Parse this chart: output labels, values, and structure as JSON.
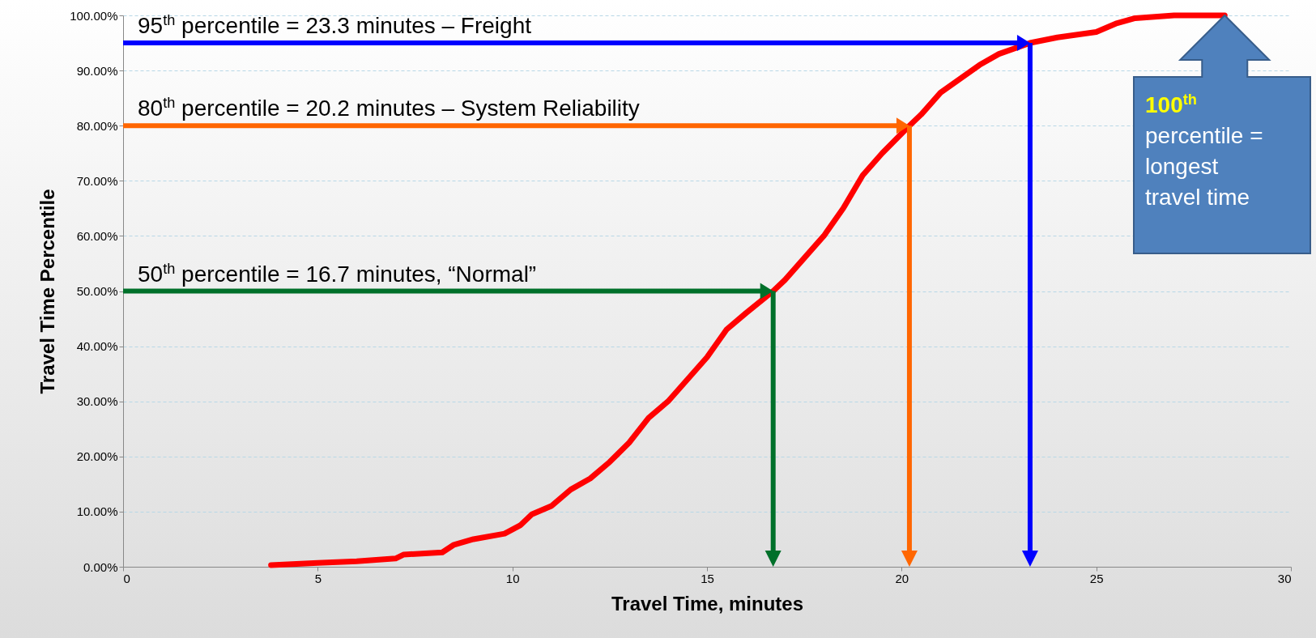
{
  "chart_data": {
    "type": "line",
    "xlabel": "Travel Time, minutes",
    "ylabel": "Travel Time Percentile",
    "x": [
      3.8,
      5,
      6,
      7,
      7.2,
      8.2,
      8.5,
      9,
      9.8,
      10.2,
      10.5,
      11,
      11.5,
      12,
      12.5,
      13,
      13.5,
      14,
      14.5,
      15,
      15.5,
      16,
      16.7,
      17,
      17.5,
      18,
      18.5,
      19,
      19.5,
      20.2,
      20.5,
      21,
      21.5,
      22,
      22.5,
      23.3,
      24,
      25,
      25.5,
      26,
      27,
      28.3
    ],
    "series": [
      {
        "color": "#ff0000",
        "values": [
          0.3,
          0.7,
          1,
          1.5,
          2.2,
          2.6,
          4,
          5,
          6,
          7.5,
          9.5,
          11,
          14,
          16,
          19,
          22.5,
          27,
          30,
          34,
          38,
          43,
          46,
          50,
          52,
          56,
          60,
          65,
          71,
          75,
          80,
          82,
          86,
          88.5,
          91,
          93,
          95,
          96,
          97,
          98.5,
          99.5,
          100,
          100
        ]
      }
    ],
    "xlim": [
      0,
      30
    ],
    "xticks": [
      0,
      5,
      10,
      15,
      20,
      25,
      30
    ],
    "ylim": [
      0,
      100
    ],
    "yticks": [
      {
        "value": 0,
        "label": "0.00%"
      },
      {
        "value": 10,
        "label": "10.00%"
      },
      {
        "value": 20,
        "label": "20.00%"
      },
      {
        "value": 30,
        "label": "30.00%"
      },
      {
        "value": 40,
        "label": "40.00%"
      },
      {
        "value": 50,
        "label": "50.00%"
      },
      {
        "value": 60,
        "label": "60.00%"
      },
      {
        "value": 70,
        "label": "70.00%"
      },
      {
        "value": 80,
        "label": "80.00%"
      },
      {
        "value": 90,
        "label": "90.00%"
      },
      {
        "value": 100,
        "label": "100.00%"
      }
    ],
    "grid": "y",
    "marker": "none",
    "line_style": "solid",
    "ref_lines": [
      {
        "axis": "y",
        "value": 95,
        "label": "95$^{th}$ percentile = 23.3 minutes – Freight",
        "color": "#0000ff"
      },
      {
        "axis": "x",
        "value": 23.3,
        "color": "#0000ff"
      },
      {
        "axis": "y",
        "value": 80,
        "label": "80$^{th}$ percentile = 20.2 minutes – System Reliability",
        "color": "#ff6600"
      },
      {
        "axis": "x",
        "value": 20.2,
        "color": "#ff6600"
      },
      {
        "axis": "y",
        "value": 50,
        "label": "50$^{th}$ percentile = 16.7 minutes, “Normal”",
        "color": "#00702a"
      },
      {
        "axis": "x",
        "value": 16.7,
        "color": "#00702a"
      }
    ],
    "annotations": [
      "100$^{th}$ percentile = longest travel time"
    ]
  }
}
